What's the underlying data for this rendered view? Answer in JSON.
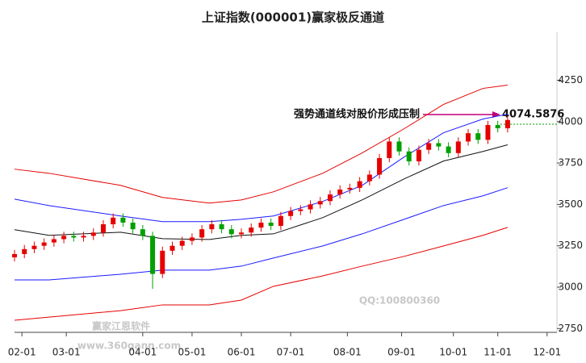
{
  "chart_data": {
    "type": "candlestick",
    "title": "上证指数(000001)赢家极反通道",
    "annotation": "强势通道线对股价形成压制",
    "annotation_value": "4074.5876",
    "watermarks": [
      "QQ:100800360",
      "赢家江恩软件",
      "www.360gann.com"
    ],
    "xlim": [
      0,
      220
    ],
    "xticks": [
      {
        "value": 3,
        "label": "02-01"
      },
      {
        "value": 21,
        "label": "03-01"
      },
      {
        "value": 52,
        "label": "04-01"
      },
      {
        "value": 72,
        "label": "05-01"
      },
      {
        "value": 92,
        "label": "06-01"
      },
      {
        "value": 112,
        "label": "07-01"
      },
      {
        "value": 135,
        "label": "08-01"
      },
      {
        "value": 157,
        "label": "09-01"
      },
      {
        "value": 178,
        "label": "10-01"
      },
      {
        "value": 196,
        "label": "11-01"
      },
      {
        "value": 216,
        "label": "12-01"
      }
    ],
    "ylim": [
      2727,
      4540
    ],
    "yticks": [
      2750,
      3000,
      3250,
      3500,
      3750,
      4000,
      4250
    ],
    "up_color": "#e60000",
    "down_color": "#00a000",
    "x": [
      0,
      4,
      8,
      12,
      16,
      20,
      24,
      28,
      32,
      36,
      40,
      44,
      48,
      52,
      56,
      60,
      64,
      68,
      72,
      76,
      80,
      84,
      88,
      92,
      96,
      100,
      104,
      108,
      112,
      116,
      120,
      124,
      128,
      132,
      136,
      140,
      144,
      148,
      152,
      156,
      160,
      164,
      168,
      172,
      176,
      180,
      184,
      188,
      192,
      196,
      200
    ],
    "open": [
      3180,
      3200,
      3230,
      3250,
      3270,
      3290,
      3310,
      3300,
      3310,
      3330,
      3380,
      3420,
      3390,
      3350,
      3310,
      3080,
      3220,
      3250,
      3280,
      3300,
      3350,
      3380,
      3350,
      3320,
      3330,
      3360,
      3390,
      3370,
      3430,
      3460,
      3470,
      3500,
      3520,
      3560,
      3590,
      3600,
      3640,
      3680,
      3780,
      3880,
      3820,
      3760,
      3830,
      3870,
      3850,
      3810,
      3880,
      3930,
      3890,
      3980,
      3960
    ],
    "close": [
      3200,
      3230,
      3250,
      3270,
      3290,
      3310,
      3300,
      3310,
      3330,
      3380,
      3420,
      3390,
      3350,
      3310,
      3080,
      3220,
      3250,
      3280,
      3300,
      3350,
      3380,
      3350,
      3320,
      3330,
      3360,
      3390,
      3370,
      3430,
      3460,
      3470,
      3500,
      3520,
      3560,
      3590,
      3600,
      3640,
      3680,
      3780,
      3880,
      3820,
      3760,
      3830,
      3870,
      3850,
      3810,
      3880,
      3930,
      3890,
      3980,
      3960,
      4010
    ],
    "high": [
      3225,
      3255,
      3275,
      3295,
      3315,
      3335,
      3335,
      3335,
      3355,
      3405,
      3445,
      3445,
      3415,
      3375,
      3335,
      3245,
      3275,
      3305,
      3325,
      3375,
      3405,
      3405,
      3375,
      3355,
      3385,
      3415,
      3415,
      3455,
      3485,
      3495,
      3525,
      3545,
      3585,
      3615,
      3625,
      3665,
      3705,
      3805,
      3905,
      3905,
      3845,
      3855,
      3895,
      3895,
      3875,
      3905,
      3955,
      3955,
      4005,
      4005,
      4035
    ],
    "low": [
      3155,
      3175,
      3205,
      3225,
      3245,
      3265,
      3275,
      3275,
      3285,
      3305,
      3355,
      3365,
      3325,
      3285,
      2990,
      3055,
      3195,
      3225,
      3255,
      3275,
      3325,
      3325,
      3295,
      3295,
      3305,
      3335,
      3345,
      3345,
      3405,
      3435,
      3445,
      3475,
      3495,
      3535,
      3565,
      3575,
      3615,
      3655,
      3755,
      3795,
      3735,
      3735,
      3805,
      3825,
      3785,
      3785,
      3855,
      3865,
      3865,
      3935,
      3935
    ],
    "channel_x": [
      0,
      14,
      43,
      60,
      79,
      92,
      105,
      125,
      141,
      158,
      174,
      190,
      200
    ],
    "channels": [
      {
        "color": "#e60000",
        "values": [
          3713,
          3688,
          3615,
          3542,
          3508,
          3527,
          3576,
          3688,
          3811,
          3957,
          4104,
          4201,
          4221
        ]
      },
      {
        "color": "#1a1aff",
        "values": [
          3532,
          3493,
          3430,
          3396,
          3396,
          3410,
          3430,
          3518,
          3615,
          3786,
          3933,
          4016,
          4045
        ]
      },
      {
        "color": "#111111",
        "values": [
          3347,
          3313,
          3332,
          3293,
          3288,
          3313,
          3322,
          3420,
          3527,
          3654,
          3762,
          3820,
          3860
        ]
      },
      {
        "color": "#1a1aff",
        "values": [
          3044,
          3044,
          3078,
          3103,
          3103,
          3127,
          3176,
          3249,
          3322,
          3410,
          3493,
          3552,
          3601
        ]
      },
      {
        "color": "#e60000",
        "values": [
          2800,
          2819,
          2858,
          2893,
          2893,
          2922,
          3005,
          3068,
          3127,
          3186,
          3249,
          3313,
          3361
        ]
      }
    ]
  }
}
